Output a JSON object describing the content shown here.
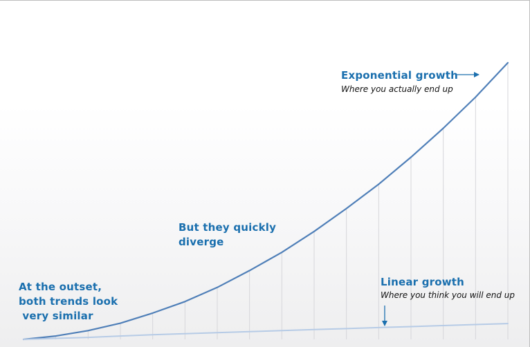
{
  "chart_data": {
    "type": "line",
    "title": "",
    "xlabel": "",
    "ylabel": "",
    "grid": true,
    "x": [
      0,
      1,
      2,
      3,
      4,
      5,
      6,
      7,
      8,
      9,
      10,
      11,
      12,
      13,
      14,
      15
    ],
    "xlim": [
      0,
      15
    ],
    "ylim": [
      0,
      420
    ],
    "series": [
      {
        "name": "Exponential growth",
        "color": "#4f7fb8",
        "values": [
          0,
          5,
          13,
          24,
          39,
          56,
          77,
          102,
          129,
          160,
          194,
          230,
          270,
          313,
          359,
          410
        ]
      },
      {
        "name": "Linear growth",
        "color": "#b6cbe6",
        "values": [
          0,
          1.5,
          3,
          5,
          7,
          8.5,
          10,
          11.5,
          13,
          14.5,
          16,
          17.5,
          19,
          20.5,
          22,
          23.5
        ]
      }
    ],
    "annotations": {
      "outset": "At the outset,\nboth trends look\n very similar",
      "diverge": "But they quickly\ndiverge",
      "exp_title": "Exponential growth",
      "exp_sub": "Where you actually end up",
      "lin_title": "Linear growth",
      "lin_sub": "Where you think you will end up"
    }
  }
}
